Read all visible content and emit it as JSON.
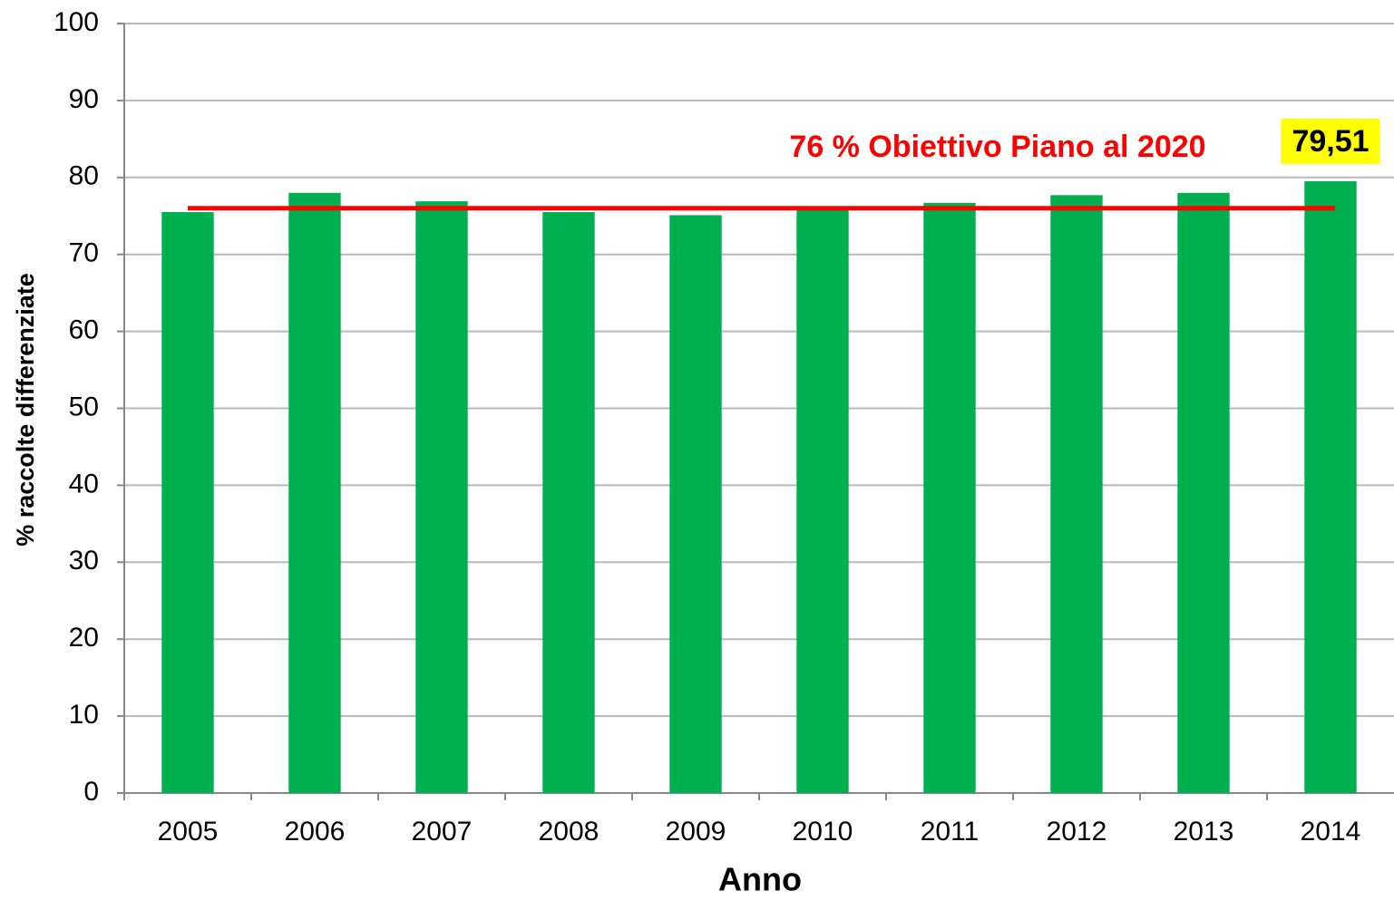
{
  "chart_data": {
    "type": "bar",
    "x_label": "Anno",
    "y_label": "% raccolte differenziate",
    "categories": [
      "2005",
      "2006",
      "2007",
      "2008",
      "2009",
      "2010",
      "2011",
      "2012",
      "2013",
      "2014"
    ],
    "values": [
      75.5,
      78.0,
      76.9,
      75.5,
      75.1,
      76.2,
      76.7,
      77.7,
      78.0,
      79.51
    ],
    "value_labels": [
      null,
      null,
      null,
      null,
      null,
      null,
      null,
      null,
      null,
      "79,51"
    ],
    "color": "#00b050",
    "ylim": [
      0,
      100
    ],
    "yticks": [
      0,
      10,
      20,
      30,
      40,
      50,
      60,
      70,
      80,
      90,
      100
    ],
    "grid": true,
    "reference_line": {
      "value": 76,
      "label": "76 % Obiettivo Piano al 2020",
      "color": "#ff0000"
    }
  }
}
